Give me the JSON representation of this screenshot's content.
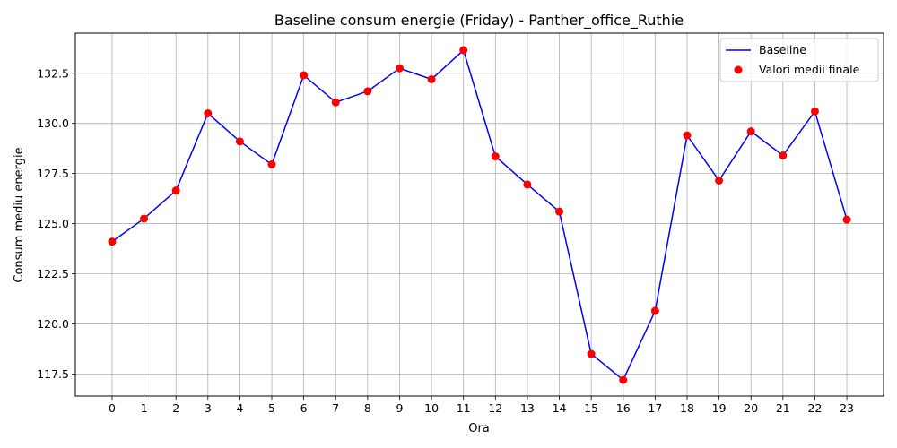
{
  "chart_data": {
    "type": "line",
    "title": "Baseline consum energie (Friday) - Panther_office_Ruthie",
    "xlabel": "Ora",
    "ylabel": "Consum mediu energie",
    "x": [
      0,
      1,
      2,
      3,
      4,
      5,
      6,
      7,
      8,
      9,
      10,
      11,
      12,
      13,
      14,
      15,
      16,
      17,
      18,
      19,
      20,
      21,
      22,
      23
    ],
    "x_ticks": [
      "0",
      "1",
      "2",
      "3",
      "4",
      "5",
      "6",
      "7",
      "8",
      "9",
      "10",
      "11",
      "12",
      "13",
      "14",
      "15",
      "16",
      "17",
      "18",
      "19",
      "20",
      "21",
      "22",
      "23"
    ],
    "y_ticks": [
      "117.5",
      "120.0",
      "122.5",
      "125.0",
      "127.5",
      "130.0",
      "132.5"
    ],
    "y_tick_values": [
      117.5,
      120.0,
      122.5,
      125.0,
      127.5,
      130.0,
      132.5
    ],
    "xlim": [
      -1.15,
      24.15
    ],
    "ylim": [
      116.4,
      134.5
    ],
    "grid": true,
    "legend_position": "top-right",
    "series": [
      {
        "name": "Baseline",
        "kind": "line",
        "color": "#0000ff",
        "values": [
          124.1,
          125.25,
          126.65,
          130.5,
          129.1,
          127.95,
          132.4,
          131.05,
          131.6,
          132.75,
          132.2,
          133.65,
          128.35,
          126.95,
          125.6,
          118.5,
          117.2,
          120.65,
          129.4,
          127.15,
          129.6,
          128.4,
          130.6,
          125.2
        ]
      },
      {
        "name": "Valori medii finale",
        "kind": "scatter",
        "color": "#ff0000",
        "values": [
          124.1,
          125.25,
          126.65,
          130.5,
          129.1,
          127.95,
          132.4,
          131.05,
          131.6,
          132.75,
          132.2,
          133.65,
          128.35,
          126.95,
          125.6,
          118.5,
          117.2,
          120.65,
          129.4,
          127.15,
          129.6,
          128.4,
          130.6,
          125.2
        ]
      }
    ]
  }
}
